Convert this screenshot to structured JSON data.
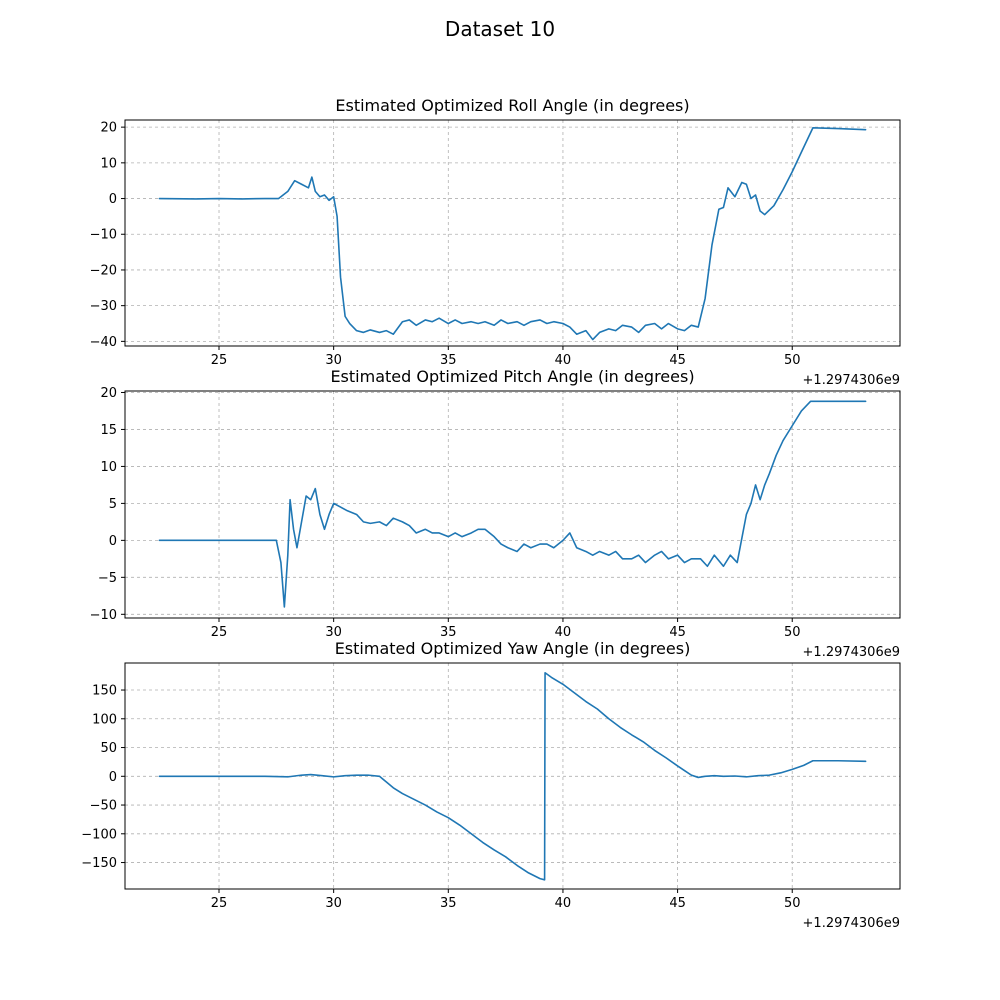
{
  "figure": {
    "title": "Dataset 10"
  },
  "colors": {
    "line": "#1f77b4",
    "grid": "#b0b0b0",
    "axes": "#000000",
    "background": "#ffffff"
  },
  "chart_data": [
    {
      "type": "line",
      "title": "Estimated Optimized Roll Angle (in degrees)",
      "xlabel": "",
      "ylabel": "",
      "x_offset_label": "+1.2974306e9",
      "xlim": [
        20.9,
        54.7
      ],
      "ylim": [
        -41.3,
        22.0
      ],
      "xticks": [
        25,
        30,
        35,
        40,
        45,
        50
      ],
      "yticks": [
        -40,
        -30,
        -20,
        -10,
        0,
        10,
        20
      ],
      "grid": true,
      "series": [
        {
          "x": [
            22.4,
            24.0,
            25.0,
            26.0,
            27.0,
            27.6,
            28.0,
            28.3,
            28.6,
            28.9,
            29.05,
            29.2,
            29.4,
            29.6,
            29.8,
            30.0,
            30.15,
            30.3,
            30.5,
            30.7,
            31.0,
            31.3,
            31.6,
            32.0,
            32.3,
            32.6,
            33.0,
            33.3,
            33.6,
            34.0,
            34.3,
            34.6,
            35.0,
            35.3,
            35.6,
            36.0,
            36.3,
            36.6,
            37.0,
            37.3,
            37.6,
            38.0,
            38.3,
            38.6,
            39.0,
            39.3,
            39.6,
            40.0,
            40.3,
            40.6,
            41.0,
            41.3,
            41.6,
            42.0,
            42.3,
            42.6,
            43.0,
            43.3,
            43.6,
            44.0,
            44.3,
            44.6,
            45.0,
            45.3,
            45.6,
            45.9,
            46.2,
            46.5,
            46.8,
            47.0,
            47.2,
            47.5,
            47.8,
            48.0,
            48.2,
            48.4,
            48.6,
            48.8,
            49.2,
            49.6,
            50.0,
            50.4,
            50.9,
            52.0,
            53.2
          ],
          "y": [
            0.0,
            -0.1,
            0.0,
            -0.1,
            0.0,
            0.0,
            2.0,
            5.0,
            4.0,
            3.0,
            6.0,
            2.0,
            0.5,
            1.0,
            -0.5,
            0.5,
            -5.0,
            -22.0,
            -33.0,
            -35.0,
            -37.0,
            -37.5,
            -36.8,
            -37.5,
            -37.0,
            -38.0,
            -34.5,
            -34.0,
            -35.5,
            -34.0,
            -34.5,
            -33.5,
            -35.0,
            -34.0,
            -35.0,
            -34.5,
            -35.0,
            -34.5,
            -35.5,
            -34.0,
            -35.0,
            -34.5,
            -35.5,
            -34.5,
            -34.0,
            -35.0,
            -34.5,
            -35.0,
            -36.0,
            -38.0,
            -37.0,
            -39.5,
            -37.5,
            -36.5,
            -37.0,
            -35.5,
            -36.0,
            -37.5,
            -35.5,
            -35.0,
            -36.5,
            -35.0,
            -36.5,
            -37.0,
            -35.5,
            -36.0,
            -28.0,
            -13.0,
            -3.0,
            -2.5,
            3.0,
            0.5,
            4.5,
            4.0,
            0.0,
            1.0,
            -3.5,
            -4.5,
            -2.0,
            2.5,
            7.5,
            13.0,
            19.8,
            19.6,
            19.3
          ]
        }
      ]
    },
    {
      "type": "line",
      "title": "Estimated Optimized Pitch Angle (in degrees)",
      "xlabel": "",
      "ylabel": "",
      "x_offset_label": "+1.2974306e9",
      "xlim": [
        20.9,
        54.7
      ],
      "ylim": [
        -10.5,
        20.2
      ],
      "xticks": [
        25,
        30,
        35,
        40,
        45,
        50
      ],
      "yticks": [
        -10,
        -5,
        0,
        5,
        10,
        15,
        20
      ],
      "grid": true,
      "series": [
        {
          "x": [
            22.4,
            24.0,
            25.0,
            26.0,
            27.0,
            27.5,
            27.7,
            27.85,
            28.0,
            28.1,
            28.25,
            28.4,
            28.6,
            28.8,
            29.0,
            29.2,
            29.4,
            29.6,
            29.8,
            30.0,
            30.3,
            30.6,
            31.0,
            31.3,
            31.6,
            32.0,
            32.3,
            32.6,
            33.0,
            33.3,
            33.6,
            34.0,
            34.3,
            34.6,
            35.0,
            35.3,
            35.6,
            36.0,
            36.3,
            36.6,
            37.0,
            37.3,
            37.6,
            38.0,
            38.3,
            38.6,
            39.0,
            39.3,
            39.6,
            40.0,
            40.3,
            40.6,
            41.0,
            41.3,
            41.6,
            42.0,
            42.3,
            42.6,
            43.0,
            43.3,
            43.6,
            44.0,
            44.3,
            44.6,
            45.0,
            45.3,
            45.6,
            46.0,
            46.3,
            46.6,
            47.0,
            47.3,
            47.6,
            48.0,
            48.2,
            48.4,
            48.6,
            48.8,
            49.0,
            49.3,
            49.6,
            50.0,
            50.4,
            50.8,
            51.5,
            53.2
          ],
          "y": [
            0.0,
            0.0,
            0.0,
            0.0,
            0.0,
            0.0,
            -3.0,
            -9.0,
            -2.0,
            5.5,
            1.5,
            -1.0,
            2.5,
            6.0,
            5.5,
            7.0,
            3.5,
            1.5,
            3.5,
            5.0,
            4.5,
            4.0,
            3.5,
            2.5,
            2.3,
            2.5,
            2.0,
            3.0,
            2.5,
            2.0,
            1.0,
            1.5,
            1.0,
            1.0,
            0.5,
            1.0,
            0.5,
            1.0,
            1.5,
            1.5,
            0.5,
            -0.5,
            -1.0,
            -1.5,
            -0.5,
            -1.0,
            -0.5,
            -0.5,
            -1.0,
            0.0,
            1.0,
            -1.0,
            -1.5,
            -2.0,
            -1.5,
            -2.0,
            -1.5,
            -2.5,
            -2.5,
            -2.0,
            -3.0,
            -2.0,
            -1.5,
            -2.5,
            -2.0,
            -3.0,
            -2.5,
            -2.5,
            -3.5,
            -2.0,
            -3.5,
            -2.0,
            -3.0,
            3.5,
            5.0,
            7.5,
            5.5,
            7.5,
            9.0,
            11.5,
            13.5,
            15.5,
            17.5,
            18.8,
            18.8,
            18.8
          ]
        }
      ]
    },
    {
      "type": "line",
      "title": "Estimated Optimized Yaw Angle (in degrees)",
      "xlabel": "",
      "ylabel": "",
      "x_offset_label": "+1.2974306e9",
      "xlim": [
        20.9,
        54.7
      ],
      "ylim": [
        -196.0,
        197.0
      ],
      "xticks": [
        25,
        30,
        35,
        40,
        45,
        50
      ],
      "yticks": [
        -150,
        -100,
        -50,
        0,
        50,
        100,
        150
      ],
      "grid": true,
      "series": [
        {
          "x": [
            22.4,
            24.0,
            26.0,
            27.0,
            28.0,
            28.6,
            29.0,
            29.5,
            30.0,
            30.5,
            31.0,
            31.5,
            32.0,
            32.3,
            32.6,
            33.0,
            33.5,
            34.0,
            34.5,
            35.0,
            35.5,
            36.0,
            36.5,
            37.0,
            37.5,
            38.0,
            38.5,
            39.0,
            39.2,
            39.22,
            39.5,
            40.0,
            40.5,
            41.0,
            41.5,
            42.0,
            42.5,
            43.0,
            43.5,
            44.0,
            44.5,
            45.0,
            45.3,
            45.6,
            45.9,
            46.2,
            46.6,
            47.0,
            47.5,
            48.0,
            48.5,
            49.0,
            49.5,
            50.0,
            50.5,
            50.9,
            52.0,
            53.2
          ],
          "y": [
            0.0,
            0.0,
            0.0,
            0.0,
            -1.0,
            2.0,
            3.0,
            1.0,
            -1.0,
            1.0,
            2.0,
            2.0,
            0.0,
            -10.0,
            -20.0,
            -30.0,
            -40.0,
            -50.0,
            -62.0,
            -72.0,
            -85.0,
            -100.0,
            -115.0,
            -128.0,
            -140.0,
            -155.0,
            -168.0,
            -178.0,
            -180.0,
            180.0,
            172.0,
            160.0,
            145.0,
            130.0,
            117.0,
            100.0,
            85.0,
            72.0,
            60.0,
            45.0,
            32.0,
            18.0,
            10.0,
            2.0,
            -2.0,
            0.0,
            1.0,
            0.0,
            0.5,
            -1.0,
            1.0,
            2.0,
            6.0,
            12.0,
            19.0,
            27.0,
            27.0,
            26.0
          ]
        }
      ]
    }
  ]
}
